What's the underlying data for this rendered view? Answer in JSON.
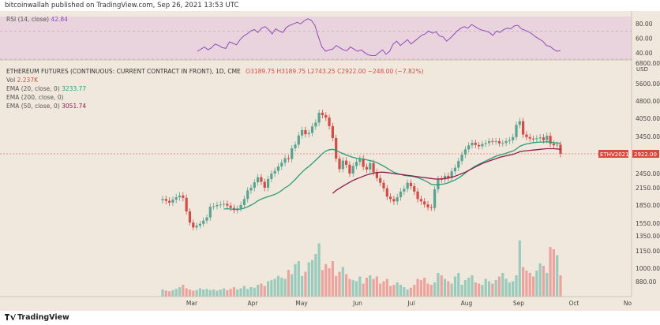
{
  "header": {
    "published": "bitcoinwallah published on TradingView.com, Sep 26, 2021 13:53 UTC"
  },
  "footer": {
    "brand": "TradingView"
  },
  "colors": {
    "background": "#f1e8dd",
    "rsi_band": "#e9d3dc",
    "up": "#5aa391",
    "down": "#d24b45",
    "ema20": "#2a9d78",
    "ema50": "#8c1c4b",
    "rsi_line": "#8e4bbd",
    "vol_up": "#99cbbd",
    "vol_down": "#eda39d",
    "badge": "#d84a3c"
  },
  "chart_data": {
    "type": "candlestick",
    "legend": {
      "rsi_label": "RSI (14, close)",
      "rsi_value": "42.84",
      "main_title": "ETHEREUM FUTURES (CONTINUOUS: CURRENT CONTRACT IN FRONT), 1D, CME",
      "ohlc": "O3189.75 H3189.75 L2743.25 C2922.00 −248.00 (−7.82%)",
      "vol_label": "Vol",
      "vol_value": "2.237K",
      "ema20_label": "EMA (20, close, 0)",
      "ema20_value": "3233.77",
      "ema200_label": "EMA (200, close, 0)",
      "ema50_label": "EMA (50, close, 0)",
      "ema50_value": "3051.74"
    },
    "price_axis": {
      "unit": "USD",
      "ticks": [
        "6800.00",
        "5600.00",
        "4800.00",
        "4050.00",
        "3450.00",
        "2922.00",
        "2450.00",
        "2150.00",
        "1850.00",
        "1550.00",
        "1350.00",
        "1150.00",
        "1000.00",
        "880.00"
      ]
    },
    "rsi_axis": {
      "ticks": [
        "80.00",
        "60.00",
        "40.00"
      ]
    },
    "x_axis": {
      "ticks": [
        "Mar",
        "Apr",
        "May",
        "Jun",
        "Jul",
        "Aug",
        "Sep",
        "Oct",
        "No"
      ]
    },
    "symbol_badge": "ETHV2021",
    "last_price": "2922.00",
    "series_close": [
      1950,
      1920,
      1890,
      1940,
      1980,
      2010,
      1970,
      1740,
      1560,
      1480,
      1510,
      1540,
      1590,
      1640,
      1820,
      1830,
      1850,
      1860,
      1870,
      1840,
      1800,
      1760,
      1790,
      1850,
      1950,
      2100,
      2150,
      2260,
      2370,
      2270,
      2150,
      2330,
      2450,
      2510,
      2610,
      2700,
      2810,
      2790,
      3080,
      3190,
      3480,
      3650,
      3520,
      3560,
      3770,
      3900,
      4280,
      4180,
      4080,
      3780,
      3400,
      2800,
      2550,
      2750,
      2650,
      2450,
      2620,
      2720,
      2800,
      2600,
      2540,
      2690,
      2480,
      2350,
      2250,
      2140,
      1990,
      1950,
      1910,
      1980,
      2080,
      2130,
      2250,
      2180,
      2080,
      1950,
      1910,
      1860,
      1810,
      1800,
      2120,
      2330,
      2320,
      2400,
      2350,
      2500,
      2580,
      2740,
      2900,
      3050,
      3170,
      3250,
      3180,
      3140,
      3210,
      3240,
      3300,
      3280,
      3300,
      3230,
      3240,
      3300,
      3330,
      3430,
      3820,
      3950,
      3510,
      3430,
      3380,
      3360,
      3390,
      3420,
      3330,
      3470,
      3220,
      3170,
      3189,
      2922
    ],
    "ema20": [
      null,
      null,
      null,
      null,
      null,
      null,
      null,
      null,
      null,
      null,
      null,
      null,
      null,
      null,
      null,
      null,
      null,
      null,
      1780,
      1785,
      1780,
      1775,
      1775,
      1780,
      1795,
      1820,
      1850,
      1880,
      1920,
      1950,
      1970,
      1990,
      2010,
      2030,
      2060,
      2100,
      2150,
      2190,
      2250,
      2320,
      2400,
      2480,
      2550,
      2610,
      2680,
      2760,
      2840,
      2930,
      3000,
      3040,
      3050,
      3020,
      2970,
      2930,
      2890,
      2860,
      2830,
      2810,
      2800,
      2790,
      2770,
      2750,
      2730,
      2700,
      2660,
      2620,
      2570,
      2520,
      2480,
      2450,
      2430,
      2410,
      2400,
      2390,
      2380,
      2360,
      2330,
      2300,
      2260,
      2220,
      2210,
      2210,
      2220,
      2230,
      2250,
      2280,
      2310,
      2350,
      2400,
      2460,
      2520,
      2570,
      2620,
      2660,
      2700,
      2740,
      2780,
      2820,
      2860,
      2890,
      2910,
      2940,
      2970,
      3000,
      3060,
      3140,
      3180,
      3210,
      3230,
      3250,
      3260,
      3270,
      3270,
      3280,
      3270,
      3250,
      3240,
      3234
    ],
    "ema50": [
      null,
      null,
      null,
      null,
      null,
      null,
      null,
      null,
      null,
      null,
      null,
      null,
      null,
      null,
      null,
      null,
      null,
      null,
      null,
      null,
      null,
      null,
      null,
      null,
      null,
      null,
      null,
      null,
      null,
      null,
      null,
      null,
      null,
      null,
      null,
      null,
      null,
      null,
      null,
      null,
      null,
      null,
      null,
      null,
      null,
      null,
      null,
      null,
      null,
      null,
      2050,
      2100,
      2140,
      2180,
      2220,
      2260,
      2300,
      2330,
      2360,
      2390,
      2420,
      2440,
      2460,
      2470,
      2480,
      2480,
      2470,
      2460,
      2450,
      2440,
      2430,
      2420,
      2410,
      2400,
      2390,
      2380,
      2370,
      2360,
      2350,
      2340,
      2330,
      2330,
      2330,
      2340,
      2350,
      2370,
      2390,
      2420,
      2450,
      2480,
      2520,
      2560,
      2600,
      2640,
      2680,
      2710,
      2740,
      2770,
      2800,
      2830,
      2850,
      2870,
      2890,
      2910,
      2940,
      2980,
      3000,
      3010,
      3020,
      3030,
      3040,
      3050,
      3060,
      3070,
      3070,
      3070,
      3060,
      3052
    ],
    "rsi": [
      null,
      null,
      null,
      null,
      null,
      null,
      null,
      null,
      null,
      null,
      null,
      null,
      null,
      null,
      null,
      null,
      null,
      null,
      null,
      null,
      null,
      null,
      null,
      null,
      null,
      null,
      null,
      null,
      null,
      null,
      null,
      null,
      null,
      null,
      null,
      null,
      null,
      null,
      null,
      null,
      null,
      null,
      null,
      null,
      null,
      null,
      null,
      null,
      null,
      null,
      null,
      null,
      null,
      null,
      null,
      null,
      null,
      null,
      null,
      null,
      null,
      null,
      null,
      null,
      null,
      null,
      null,
      null,
      null,
      null,
      null,
      null,
      null,
      null,
      null,
      null,
      null,
      null,
      null,
      null,
      null,
      null,
      null,
      null,
      null,
      null,
      null,
      null,
      null,
      null,
      null,
      null,
      null,
      null,
      null,
      null,
      null,
      null,
      null,
      null,
      null,
      null,
      null,
      null,
      null,
      null,
      null,
      null,
      null,
      null,
      null,
      null,
      null,
      null,
      null,
      null,
      null,
      null
    ],
    "rsi_values": [
      42,
      45,
      48,
      44,
      47,
      52,
      50,
      47,
      46,
      55,
      53,
      51,
      58,
      63,
      66,
      70,
      72,
      68,
      74,
      76,
      72,
      66,
      73,
      70,
      68,
      75,
      78,
      80,
      82,
      80,
      84,
      87,
      85,
      78,
      62,
      48,
      42,
      44,
      45,
      50,
      47,
      44,
      43,
      48,
      45,
      42,
      44,
      40,
      37,
      36,
      36,
      40,
      44,
      38,
      42,
      52,
      56,
      50,
      54,
      58,
      52,
      56,
      60,
      64,
      66,
      70,
      67,
      69,
      63,
      62,
      56,
      60,
      65,
      70,
      74,
      76,
      74,
      79,
      76,
      73,
      71,
      70,
      68,
      64,
      70,
      68,
      72,
      74,
      73,
      77,
      78,
      73,
      71,
      69,
      66,
      62,
      59,
      56,
      50,
      49,
      45,
      42,
      43
    ],
    "volume": [
      0.12,
      0.1,
      0.09,
      0.11,
      0.13,
      0.16,
      0.2,
      0.14,
      0.12,
      0.1,
      0.11,
      0.14,
      0.12,
      0.13,
      0.11,
      0.12,
      0.1,
      0.12,
      0.14,
      0.11,
      0.13,
      0.16,
      0.12,
      0.14,
      0.18,
      0.13,
      0.16,
      0.15,
      0.2,
      0.22,
      0.18,
      0.26,
      0.28,
      0.3,
      0.35,
      0.32,
      0.3,
      0.45,
      0.38,
      0.55,
      0.6,
      0.35,
      0.42,
      0.58,
      0.62,
      0.72,
      0.9,
      0.45,
      0.55,
      0.48,
      0.6,
      0.35,
      0.42,
      0.5,
      0.38,
      0.3,
      0.28,
      0.26,
      0.34,
      0.22,
      0.32,
      0.36,
      0.3,
      0.34,
      0.22,
      0.26,
      0.3,
      0.18,
      0.2,
      0.24,
      0.2,
      0.16,
      0.12,
      0.15,
      0.2,
      0.3,
      0.28,
      0.32,
      0.22,
      0.2,
      0.24,
      0.4,
      0.36,
      0.3,
      0.26,
      0.22,
      0.34,
      0.4,
      0.2,
      0.28,
      0.32,
      0.36,
      0.24,
      0.22,
      0.2,
      0.3,
      0.26,
      0.22,
      0.28,
      0.34,
      0.4,
      0.3,
      0.24,
      0.26,
      0.36,
      0.95,
      0.5,
      0.44,
      0.4,
      0.34,
      0.44,
      0.56,
      0.52,
      0.4,
      0.84,
      0.8,
      0.7,
      0.36
    ]
  }
}
